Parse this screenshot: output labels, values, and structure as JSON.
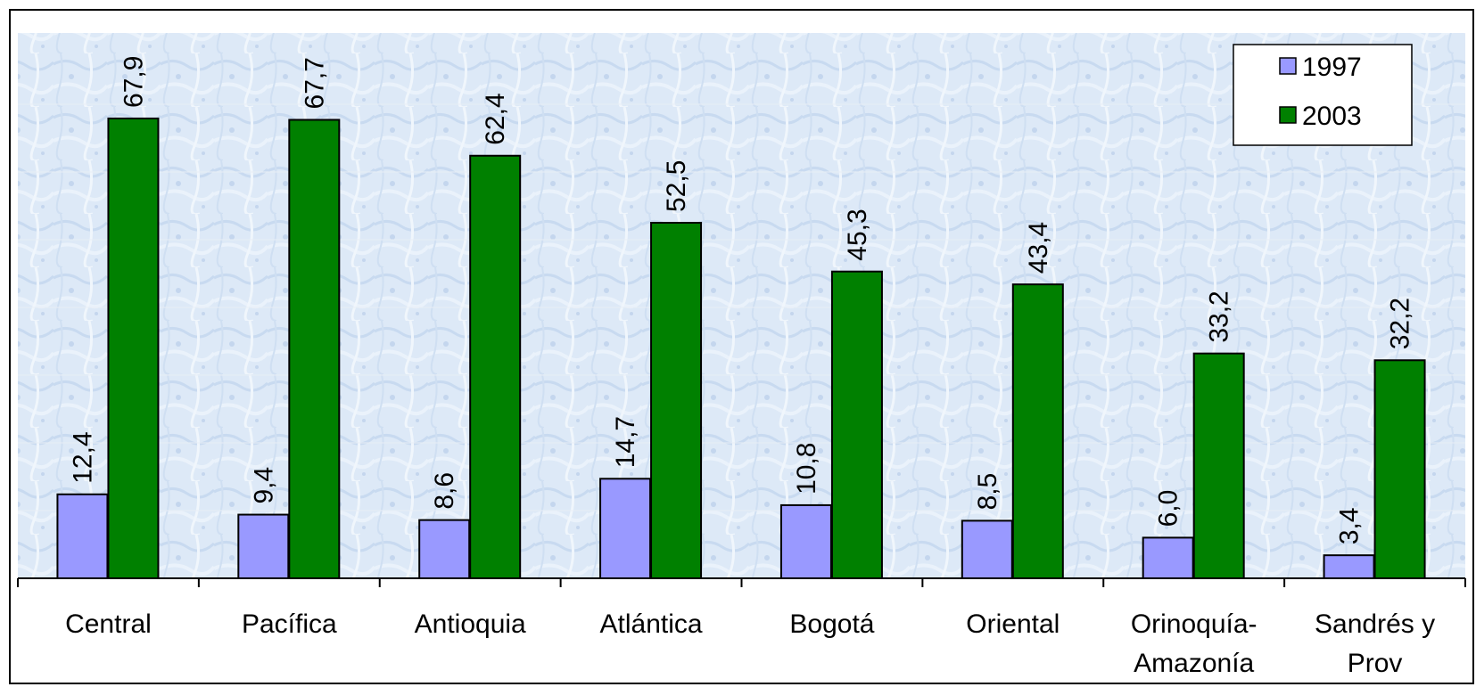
{
  "chart_data": {
    "type": "bar",
    "categories": [
      [
        "Central"
      ],
      [
        "Pacífica"
      ],
      [
        "Antioquia"
      ],
      [
        "Atlántica"
      ],
      [
        "Bogotá"
      ],
      [
        "Oriental"
      ],
      [
        "Orinoquía-",
        "Amazonía"
      ],
      [
        "Sandrés y",
        "Prov"
      ]
    ],
    "series": [
      {
        "name": "1997",
        "color": "#9999ff",
        "values": [
          12.4,
          9.4,
          8.6,
          14.7,
          10.8,
          8.5,
          6.0,
          3.4
        ],
        "labels": [
          "12,4",
          "9,4",
          "8,6",
          "14,7",
          "10,8",
          "8,5",
          "6,0",
          "3,4"
        ]
      },
      {
        "name": "2003",
        "color": "#008000",
        "values": [
          67.9,
          67.7,
          62.4,
          52.5,
          45.3,
          43.4,
          33.2,
          32.2
        ],
        "labels": [
          "67,9",
          "67,7",
          "62,4",
          "52,5",
          "45,3",
          "43,4",
          "33,2",
          "32,2"
        ]
      }
    ],
    "ylim": [
      0,
      80
    ],
    "grid": true,
    "legend": "top-right",
    "title": "",
    "xlabel": "",
    "ylabel": ""
  }
}
